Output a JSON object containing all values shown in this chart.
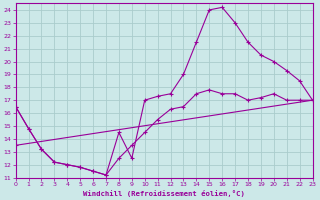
{
  "xlabel": "Windchill (Refroidissement éolien,°C)",
  "bg_color": "#cce8e8",
  "line_color": "#990099",
  "grid_color": "#aacccc",
  "xmin": 0,
  "xmax": 23,
  "ymin": 11,
  "ymax": 24.5,
  "ytick_min": 11,
  "ytick_max": 24,
  "line1_x": [
    0,
    1,
    2,
    3,
    4,
    5,
    6,
    7,
    8,
    9,
    10,
    11,
    12,
    13,
    14,
    15,
    16,
    17,
    18,
    19,
    20,
    21,
    22,
    23
  ],
  "line1_y": [
    16.5,
    14.8,
    13.2,
    12.2,
    12.0,
    11.8,
    11.5,
    11.2,
    14.5,
    12.5,
    17.0,
    17.3,
    17.5,
    19.0,
    21.5,
    24.0,
    24.2,
    23.0,
    21.5,
    20.5,
    20.0,
    19.3,
    18.5,
    17.0
  ],
  "line2_x": [
    0,
    1,
    2,
    3,
    4,
    5,
    6,
    7,
    8,
    9,
    10,
    11,
    12,
    13,
    14,
    15,
    16,
    17,
    18,
    19,
    20,
    21,
    22,
    23
  ],
  "line2_y": [
    16.5,
    14.8,
    13.2,
    12.2,
    12.0,
    11.8,
    11.5,
    11.2,
    12.5,
    13.5,
    14.5,
    15.5,
    16.3,
    16.5,
    17.5,
    17.8,
    17.5,
    17.5,
    17.0,
    17.2,
    17.5,
    17.0,
    17.0,
    17.0
  ],
  "line3_x": [
    0,
    23
  ],
  "line3_y": [
    13.5,
    17.0
  ]
}
